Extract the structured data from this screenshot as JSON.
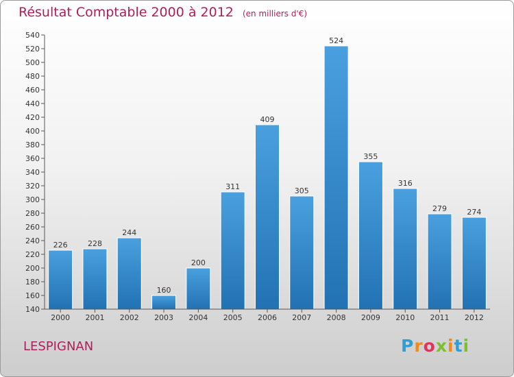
{
  "chart_data": {
    "type": "bar",
    "title": "Résultat Comptable 2000 à 2012",
    "subtitle": "(en milliers d'€)",
    "categories": [
      "2000",
      "2001",
      "2002",
      "2003",
      "2004",
      "2005",
      "2006",
      "2007",
      "2008",
      "2009",
      "2010",
      "2011",
      "2012"
    ],
    "values": [
      226,
      228,
      244,
      160,
      200,
      311,
      409,
      305,
      524,
      355,
      316,
      279,
      274
    ],
    "ylim": [
      140,
      540
    ],
    "ytick_step": 20,
    "xlabel": "",
    "ylabel": "",
    "grid": false,
    "bar_color": "#4aa0de",
    "bar_color_dark": "#2272b3"
  },
  "footer": {
    "city": "LESPIGNAN",
    "logo_text": "Proxiti"
  },
  "colors": {
    "title": "#b01e5a",
    "frame_border": "#9a9a9a"
  }
}
